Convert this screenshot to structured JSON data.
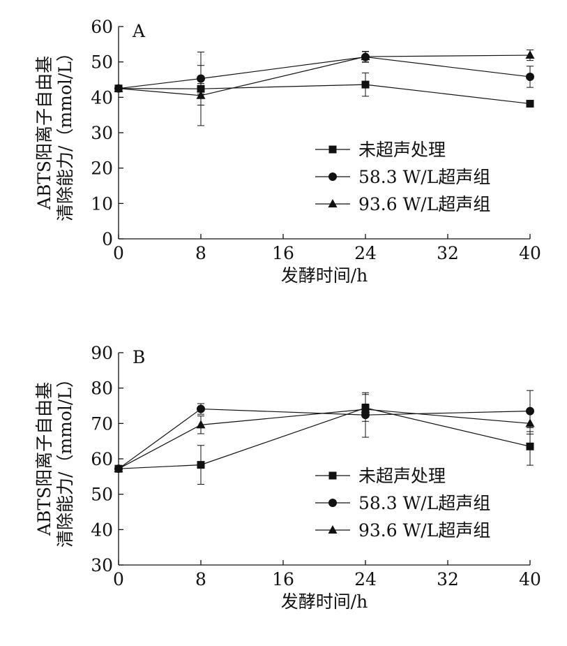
{
  "chart_data": [
    {
      "type": "line",
      "panel_label": "A",
      "xlabel": "发酵时间/h",
      "ylabel_lines": [
        "ABTS阳离子自由基",
        "清除能力/（mmol/L）"
      ],
      "xlim": [
        0,
        40
      ],
      "ylim": [
        0,
        60
      ],
      "xticks": [
        0,
        8,
        16,
        24,
        32,
        40
      ],
      "yticks": [
        0,
        10,
        20,
        30,
        40,
        50,
        60
      ],
      "grid": false,
      "legend_position": "bottom-right",
      "x": [
        0,
        8,
        24,
        40
      ],
      "series": [
        {
          "name": "未超声处理",
          "marker": "square",
          "values": [
            42.5,
            42.4,
            43.6,
            38.2
          ],
          "errors": [
            0.5,
            1.5,
            3.3,
            0.5
          ]
        },
        {
          "name": "58.3 W/L超声组",
          "marker": "circle",
          "values": [
            42.5,
            45.3,
            51.4,
            45.8
          ],
          "errors": [
            0.5,
            7.5,
            1.5,
            3.0
          ]
        },
        {
          "name": "93.6 W/L超声组",
          "marker": "triangle",
          "values": [
            42.5,
            40.5,
            51.5,
            51.9
          ],
          "errors": [
            0.5,
            8.5,
            1.5,
            1.5
          ]
        }
      ]
    },
    {
      "type": "line",
      "panel_label": "B",
      "xlabel": "发酵时间/h",
      "ylabel_lines": [
        "ABTS阳离子自由基",
        "清除能力/（mmol/L）"
      ],
      "xlim": [
        0,
        40
      ],
      "ylim": [
        30,
        90
      ],
      "xticks": [
        0,
        8,
        16,
        24,
        32,
        40
      ],
      "yticks": [
        30,
        40,
        50,
        60,
        70,
        80,
        90
      ],
      "grid": false,
      "legend_position": "bottom-right",
      "x": [
        0,
        8,
        24,
        40
      ],
      "series": [
        {
          "name": "未超声处理",
          "marker": "square",
          "values": [
            57.2,
            58.3,
            74.4,
            63.5
          ],
          "errors": [
            0.5,
            5.5,
            3.8,
            5.3
          ]
        },
        {
          "name": "58.3 W/L超声组",
          "marker": "circle",
          "values": [
            57.2,
            74.1,
            72.4,
            73.5
          ],
          "errors": [
            0.5,
            1.5,
            6.3,
            5.8
          ]
        },
        {
          "name": "93.6 W/L超声组",
          "marker": "triangle",
          "values": [
            57.2,
            69.6,
            74.0,
            70.0
          ],
          "errors": [
            0.5,
            2.5,
            1.5,
            3.0
          ]
        }
      ]
    }
  ]
}
